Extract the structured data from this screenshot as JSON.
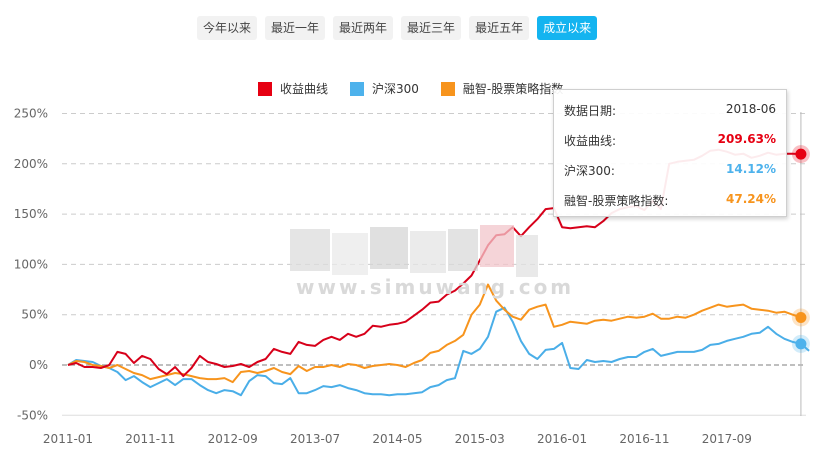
{
  "range_buttons": [
    {
      "label": "今年以来",
      "active": false
    },
    {
      "label": "最近一年",
      "active": false
    },
    {
      "label": "最近两年",
      "active": false
    },
    {
      "label": "最近三年",
      "active": false
    },
    {
      "label": "最近五年",
      "active": false
    },
    {
      "label": "成立以来",
      "active": true
    }
  ],
  "legend": [
    {
      "label": "收益曲线",
      "color": "#e60012"
    },
    {
      "label": "沪深300",
      "color": "#4db2ec"
    },
    {
      "label": "融智-股票策略指数",
      "color": "#f7941d"
    }
  ],
  "tooltip": {
    "date_label": "数据日期:",
    "date_value": "2018-06",
    "rows": [
      {
        "label": "收益曲线:",
        "value": "209.63%",
        "color": "#e60012"
      },
      {
        "label": "沪深300:",
        "value": "14.12%",
        "color": "#4db2ec"
      },
      {
        "label": "融智-股票策略指数:",
        "value": "47.24%",
        "color": "#f7941d"
      }
    ]
  },
  "watermark": "www.simuwang.com",
  "chart_data": {
    "type": "line",
    "title": "",
    "xlabel": "",
    "ylabel": "",
    "ylim": [
      -50,
      250
    ],
    "yticks": [
      "250%",
      "200%",
      "150%",
      "100%",
      "50%",
      "0%",
      "-50%"
    ],
    "ytick_values": [
      250,
      200,
      150,
      100,
      50,
      0,
      -50
    ],
    "xticks": [
      "2011-01",
      "2011-11",
      "2012-09",
      "2013-07",
      "2014-05",
      "2015-03",
      "2016-01",
      "2016-11",
      "2017-09"
    ],
    "x_start": "2011-01",
    "x_end": "2018-06",
    "grid": "horizontal dashed",
    "legend_position": "top",
    "series": [
      {
        "name": "收益曲线",
        "color": "#d7001a",
        "values": [
          0,
          2,
          -2,
          -2,
          -3,
          0,
          13,
          11,
          2,
          9,
          6,
          -4,
          -9,
          -2,
          -11,
          -3,
          9,
          3,
          1,
          -2,
          -1,
          1,
          -2,
          3,
          6,
          16,
          13,
          11,
          23,
          20,
          19,
          25,
          28,
          25,
          31,
          28,
          31,
          39,
          38,
          40,
          41,
          43,
          49,
          55,
          62,
          63,
          70,
          74,
          81,
          89,
          104,
          119,
          129,
          130,
          137,
          128,
          137,
          145,
          155,
          156,
          137,
          136,
          137,
          138,
          137,
          143,
          151,
          155,
          157,
          158,
          154,
          163,
          155,
          200,
          202,
          203,
          204,
          208,
          213,
          214,
          212,
          209,
          210,
          206,
          208,
          211,
          209,
          210,
          210,
          209.63
        ]
      },
      {
        "name": "沪深300",
        "color": "#4aaee8",
        "values": [
          0,
          5,
          4,
          3,
          -1,
          -3,
          -7,
          -15,
          -11,
          -17,
          -22,
          -18,
          -14,
          -20,
          -14,
          -14,
          -20,
          -25,
          -28,
          -25,
          -26,
          -30,
          -16,
          -10,
          -11,
          -18,
          -19,
          -13,
          -28,
          -28,
          -25,
          -21,
          -22,
          -20,
          -23,
          -25,
          -28,
          -29,
          -29,
          -30,
          -29,
          -29,
          -28,
          -27,
          -22,
          -20,
          -15,
          -13,
          14,
          11,
          16,
          28,
          53,
          57,
          43,
          24,
          11,
          6,
          15,
          16,
          22,
          -3,
          -4,
          5,
          3,
          4,
          3,
          6,
          8,
          8,
          13,
          16,
          9,
          11,
          13,
          13,
          13,
          15,
          20,
          21,
          24,
          26,
          28,
          31,
          32,
          38,
          31,
          26,
          23,
          21,
          14.12
        ]
      },
      {
        "name": "融智-股票策略指数",
        "color": "#f7941d",
        "values": [
          0,
          4,
          3,
          0,
          -1,
          -3,
          0,
          -4,
          -8,
          -10,
          -14,
          -12,
          -10,
          -8,
          -9,
          -11,
          -13,
          -14,
          -14,
          -13,
          -17,
          -7,
          -6,
          -8,
          -6,
          -3,
          -7,
          -9,
          -1,
          -6,
          -2,
          -2,
          0,
          -2,
          1,
          0,
          -3,
          -1,
          0,
          1,
          0,
          -2,
          2,
          5,
          12,
          14,
          20,
          24,
          30,
          50,
          60,
          80,
          64,
          55,
          48,
          45,
          55,
          58,
          60,
          38,
          40,
          43,
          42,
          41,
          44,
          45,
          44,
          46,
          48,
          47,
          48,
          51,
          46,
          46,
          48,
          47,
          50,
          54,
          57,
          60,
          58,
          59,
          60,
          56,
          55,
          54,
          52,
          53,
          50,
          47.24
        ]
      }
    ],
    "highlighted_point": {
      "x": "2018-06",
      "values": {
        "收益曲线": 209.63,
        "沪深300": 14.12,
        "融智-股票策略指数": 47.24
      }
    }
  }
}
